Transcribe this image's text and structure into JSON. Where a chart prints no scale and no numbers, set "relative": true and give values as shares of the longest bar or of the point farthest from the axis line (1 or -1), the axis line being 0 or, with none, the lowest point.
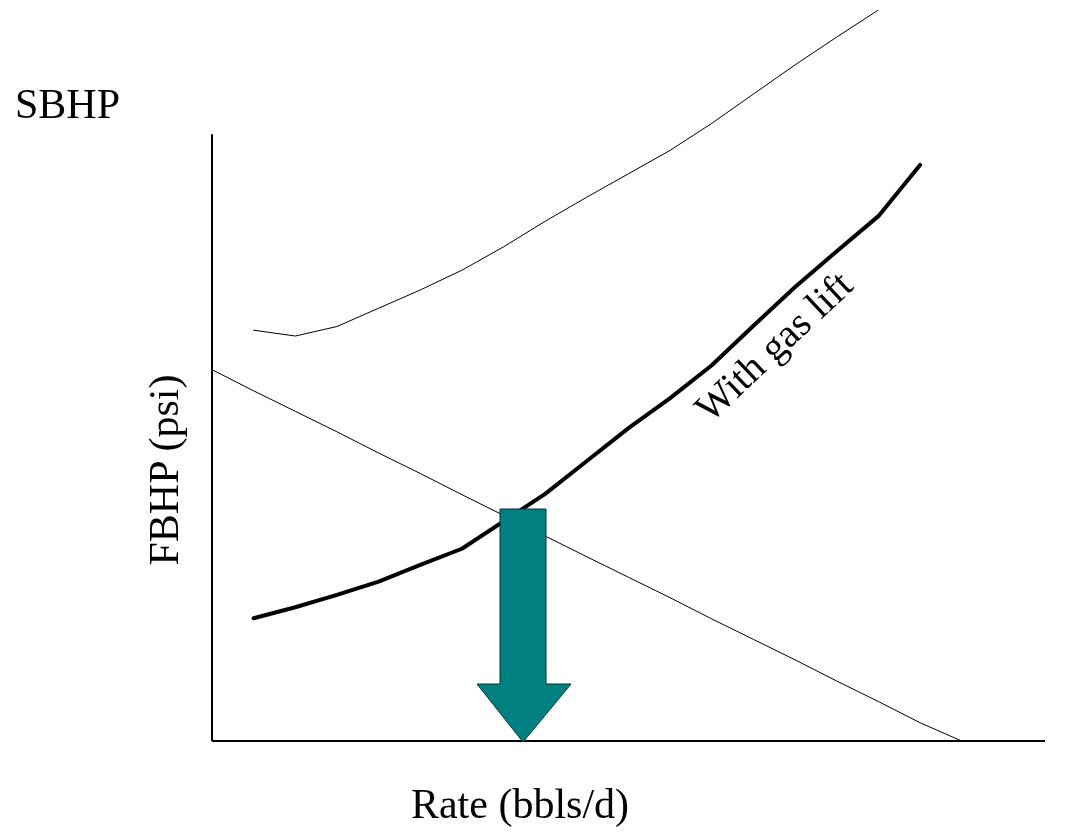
{
  "chart_data": {
    "type": "line",
    "relative": true,
    "xlabel": "Rate (bbls/d)",
    "ylabel": "FBHP (psi)",
    "annotations": [
      "SBHP"
    ],
    "grid": false,
    "legend": false,
    "marker": "none",
    "line_style": "solid",
    "categories": [
      null,
      null,
      null,
      null,
      null,
      null,
      null,
      null,
      null,
      null,
      null,
      null,
      null,
      null,
      null,
      null,
      null,
      null,
      null,
      null,
      null
    ],
    "series": [
      {
        "color": "#000000",
        "values": [
          null,
          0.562,
          0.554,
          0.567,
          0.592,
          0.617,
          0.644,
          0.676,
          0.711,
          0.744,
          0.776,
          0.808,
          0.845,
          0.885,
          0.925,
          0.963,
          1,
          null,
          null,
          null,
          null
        ]
      },
      {
        "name": "With gas lift",
        "color": "#000000",
        "values": [
          null,
          0.168,
          0.183,
          0.2,
          0.218,
          0.241,
          0.263,
          null,
          0.338,
          0.383,
          0.428,
          0.469,
          0.514,
          0.568,
          0.621,
          0.67,
          0.718,
          0.788,
          null,
          null,
          null
        ]
      },
      {
        "color": "#000000",
        "values": [
          0.508,
          0.479,
          0.451,
          0.423,
          0.394,
          0.366,
          0.337,
          null,
          null,
          0.252,
          0.224,
          0.196,
          0.167,
          0.139,
          0.111,
          0.082,
          0.054,
          0.025,
          0,
          null,
          null
        ]
      }
    ]
  }
}
